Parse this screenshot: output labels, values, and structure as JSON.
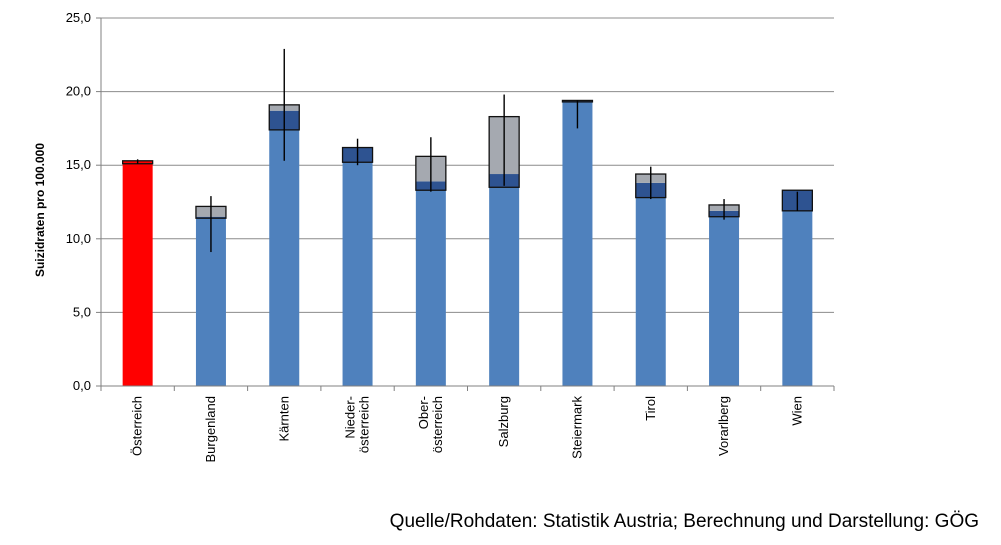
{
  "chart_data": {
    "type": "bar",
    "title": "",
    "xlabel": "",
    "ylabel": "Suizidraten pro 100.000",
    "ylim": [
      0,
      25
    ],
    "yticks": [
      "0,0",
      "5,0",
      "10,0",
      "15,0",
      "20,0",
      "25,0"
    ],
    "grid": true,
    "categories": [
      [
        "Österreich"
      ],
      [
        "Burgenland"
      ],
      [
        "Kärnten"
      ],
      [
        "Nieder-",
        "österreich"
      ],
      [
        "Ober-",
        "österreich"
      ],
      [
        "Salzburg"
      ],
      [
        "Steiermark"
      ],
      [
        "Tirol"
      ],
      [
        "Vorarlberg"
      ],
      [
        "Wien"
      ]
    ],
    "bars": [
      {
        "base": 15.1,
        "box_low": 15.1,
        "box_high": 15.3,
        "box_split": 15.3,
        "err_low": 15.1,
        "err_high": 15.4,
        "highlight": true
      },
      {
        "base": 11.4,
        "box_low": 11.4,
        "box_high": 12.2,
        "box_split": 11.5,
        "err_low": 9.1,
        "err_high": 12.9
      },
      {
        "base": 17.4,
        "box_low": 17.4,
        "box_high": 19.1,
        "box_split": 18.7,
        "err_low": 15.3,
        "err_high": 22.9
      },
      {
        "base": 15.2,
        "box_low": 15.2,
        "box_high": 16.2,
        "box_split": 16.2,
        "err_low": 15.0,
        "err_high": 16.8
      },
      {
        "base": 13.3,
        "box_low": 13.3,
        "box_high": 15.6,
        "box_split": 13.9,
        "err_low": 13.2,
        "err_high": 16.9
      },
      {
        "base": 13.5,
        "box_low": 13.5,
        "box_high": 18.3,
        "box_split": 14.4,
        "err_low": 13.6,
        "err_high": 19.8
      },
      {
        "base": 19.3,
        "box_low": 19.3,
        "box_high": 19.4,
        "box_split": 19.4,
        "err_low": 17.5,
        "err_high": 19.4
      },
      {
        "base": 12.8,
        "box_low": 12.8,
        "box_high": 14.4,
        "box_split": 13.8,
        "err_low": 12.7,
        "err_high": 14.9
      },
      {
        "base": 11.5,
        "box_low": 11.5,
        "box_high": 12.3,
        "box_split": 11.9,
        "err_low": 11.3,
        "err_high": 12.7
      },
      {
        "base": 11.9,
        "box_low": 11.9,
        "box_high": 13.3,
        "box_split": 13.3,
        "err_low": 11.9,
        "err_high": 13.2
      }
    ],
    "colors": {
      "bar": "#4f81bd",
      "highlight": "#ff0000",
      "box_dark": "#2e5391",
      "box_light": "#a5a9b0",
      "grid": "#8c8c8c",
      "axis": "#808080"
    }
  },
  "source": "Quelle/Rohdaten: Statistik Austria; Berechnung und Darstellung: GÖG"
}
